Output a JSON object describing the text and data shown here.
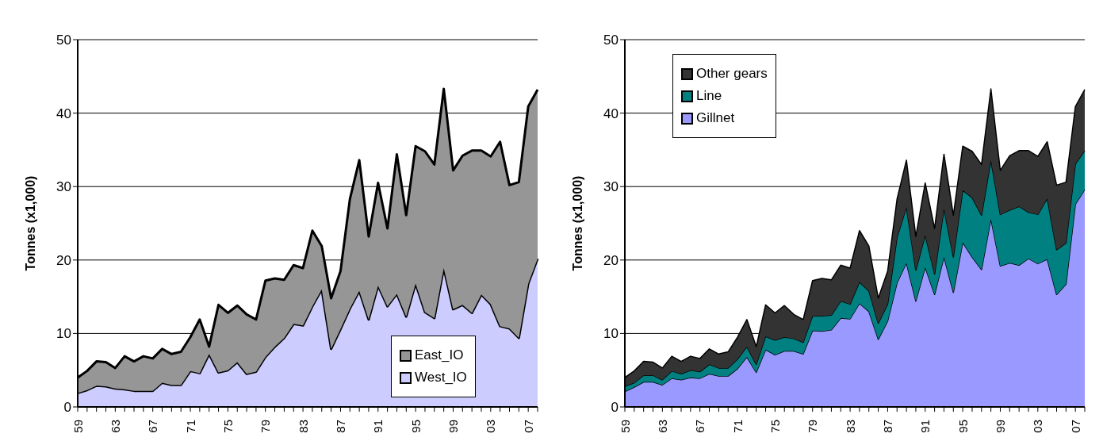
{
  "chart_data": [
    {
      "type": "area",
      "stacked": true,
      "ylabel": "Tonnes (x1,000)",
      "categories": [
        "59",
        null,
        null,
        null,
        "63",
        null,
        null,
        null,
        "67",
        null,
        null,
        null,
        "71",
        null,
        null,
        null,
        "75",
        null,
        null,
        null,
        "79",
        null,
        null,
        null,
        "83",
        null,
        null,
        null,
        "87",
        null,
        null,
        null,
        "91",
        null,
        null,
        null,
        "95",
        null,
        null,
        null,
        "99",
        null,
        null,
        null,
        "03",
        null,
        null,
        null,
        "07",
        null
      ],
      "ylim": [
        0,
        50
      ],
      "yticks": [
        0,
        10,
        20,
        30,
        40,
        50
      ],
      "grid": "y",
      "legend": "bottom right",
      "series": [
        {
          "name": "West_IO",
          "color": "#ccccff",
          "values": [
            1.9,
            2.3,
            2.9,
            2.8,
            2.5,
            2.4,
            2.2,
            2.2,
            2.2,
            3.3,
            3.0,
            3.0,
            4.9,
            4.6,
            7.2,
            4.7,
            5.0,
            6.1,
            4.5,
            4.8,
            6.8,
            8.2,
            9.4,
            11.3,
            11.1,
            13.7,
            16.0,
            7.9,
            10.6,
            13.4,
            15.8,
            11.9,
            16.5,
            13.7,
            15.4,
            12.3,
            16.8,
            12.9,
            12.1,
            18.9,
            13.3,
            13.9,
            12.8,
            15.3,
            14.0,
            11.0,
            10.7,
            9.4,
            16.8,
            20.2
          ]
        },
        {
          "name": "East_IO",
          "color": "#969696",
          "values": [
            2.1,
            2.6,
            3.3,
            3.3,
            2.8,
            4.5,
            4.0,
            4.7,
            4.4,
            4.6,
            4.2,
            4.5,
            4.6,
            7.3,
            1.0,
            9.2,
            7.8,
            7.7,
            8.1,
            7.1,
            10.4,
            9.3,
            7.9,
            8.0,
            7.8,
            10.3,
            5.9,
            6.9,
            7.9,
            14.9,
            17.8,
            11.3,
            14.0,
            10.6,
            19.0,
            13.8,
            18.7,
            21.9,
            20.9,
            24.4,
            18.9,
            20.3,
            22.1,
            19.6,
            20.1,
            25.1,
            19.5,
            21.2,
            24.1,
            23.0
          ]
        }
      ]
    },
    {
      "type": "area",
      "stacked": true,
      "ylabel": "Tonnes (x1,000)",
      "categories": [
        "59",
        null,
        null,
        null,
        "63",
        null,
        null,
        null,
        "67",
        null,
        null,
        null,
        "71",
        null,
        null,
        null,
        "75",
        null,
        null,
        null,
        "79",
        null,
        null,
        null,
        "83",
        null,
        null,
        null,
        "87",
        null,
        null,
        null,
        "91",
        null,
        null,
        null,
        "95",
        null,
        null,
        null,
        "99",
        null,
        null,
        null,
        "03",
        null,
        null,
        null,
        "07",
        null
      ],
      "ylim": [
        0,
        50
      ],
      "yticks": [
        0,
        10,
        20,
        30,
        40,
        50
      ],
      "grid": "y",
      "legend": "top left",
      "series": [
        {
          "name": "Gillnet",
          "color": "#9999ff",
          "values": [
            2.1,
            2.7,
            3.4,
            3.4,
            3.0,
            3.9,
            3.7,
            4.0,
            3.9,
            4.5,
            4.2,
            4.2,
            5.2,
            6.8,
            4.7,
            7.8,
            7.1,
            7.6,
            7.6,
            7.2,
            10.4,
            10.3,
            10.5,
            12.1,
            12.0,
            14.1,
            13.0,
            9.2,
            11.7,
            16.9,
            19.6,
            14.4,
            19.0,
            15.3,
            20.4,
            15.6,
            22.4,
            20.4,
            18.7,
            25.6,
            19.2,
            19.6,
            19.3,
            20.2,
            19.5,
            20.1,
            15.3,
            16.7,
            27.6,
            29.6
          ]
        },
        {
          "name": "Line",
          "color": "#008080",
          "values": [
            0.7,
            0.6,
            0.9,
            0.9,
            0.7,
            1.0,
            0.8,
            1.0,
            0.9,
            1.3,
            1.1,
            1.1,
            1.3,
            1.4,
            1.1,
            1.8,
            2.0,
            1.9,
            1.7,
            1.6,
            2.0,
            2.1,
            2.0,
            2.3,
            2.0,
            2.9,
            2.8,
            2.2,
            2.3,
            6.2,
            7.6,
            4.2,
            4.4,
            2.8,
            6.6,
            4.8,
            7.1,
            8.1,
            7.4,
            8.0,
            7.0,
            7.2,
            8.0,
            6.3,
            6.7,
            8.3,
            6.1,
            5.6,
            5.5,
            5.3
          ]
        },
        {
          "name": "Other gears",
          "color": "#333333",
          "values": [
            1.2,
            1.6,
            1.9,
            1.8,
            1.6,
            2.0,
            1.7,
            1.9,
            1.8,
            2.1,
            1.9,
            2.2,
            3.0,
            3.7,
            2.4,
            4.3,
            3.7,
            4.3,
            3.3,
            3.1,
            4.8,
            5.1,
            4.8,
            4.9,
            4.9,
            7.0,
            6.1,
            3.4,
            4.5,
            5.2,
            6.4,
            4.6,
            7.1,
            6.2,
            7.4,
            5.7,
            6.0,
            6.3,
            6.9,
            9.7,
            6.0,
            7.4,
            7.6,
            8.4,
            7.9,
            7.7,
            8.8,
            8.3,
            7.8,
            8.3
          ]
        }
      ]
    }
  ]
}
